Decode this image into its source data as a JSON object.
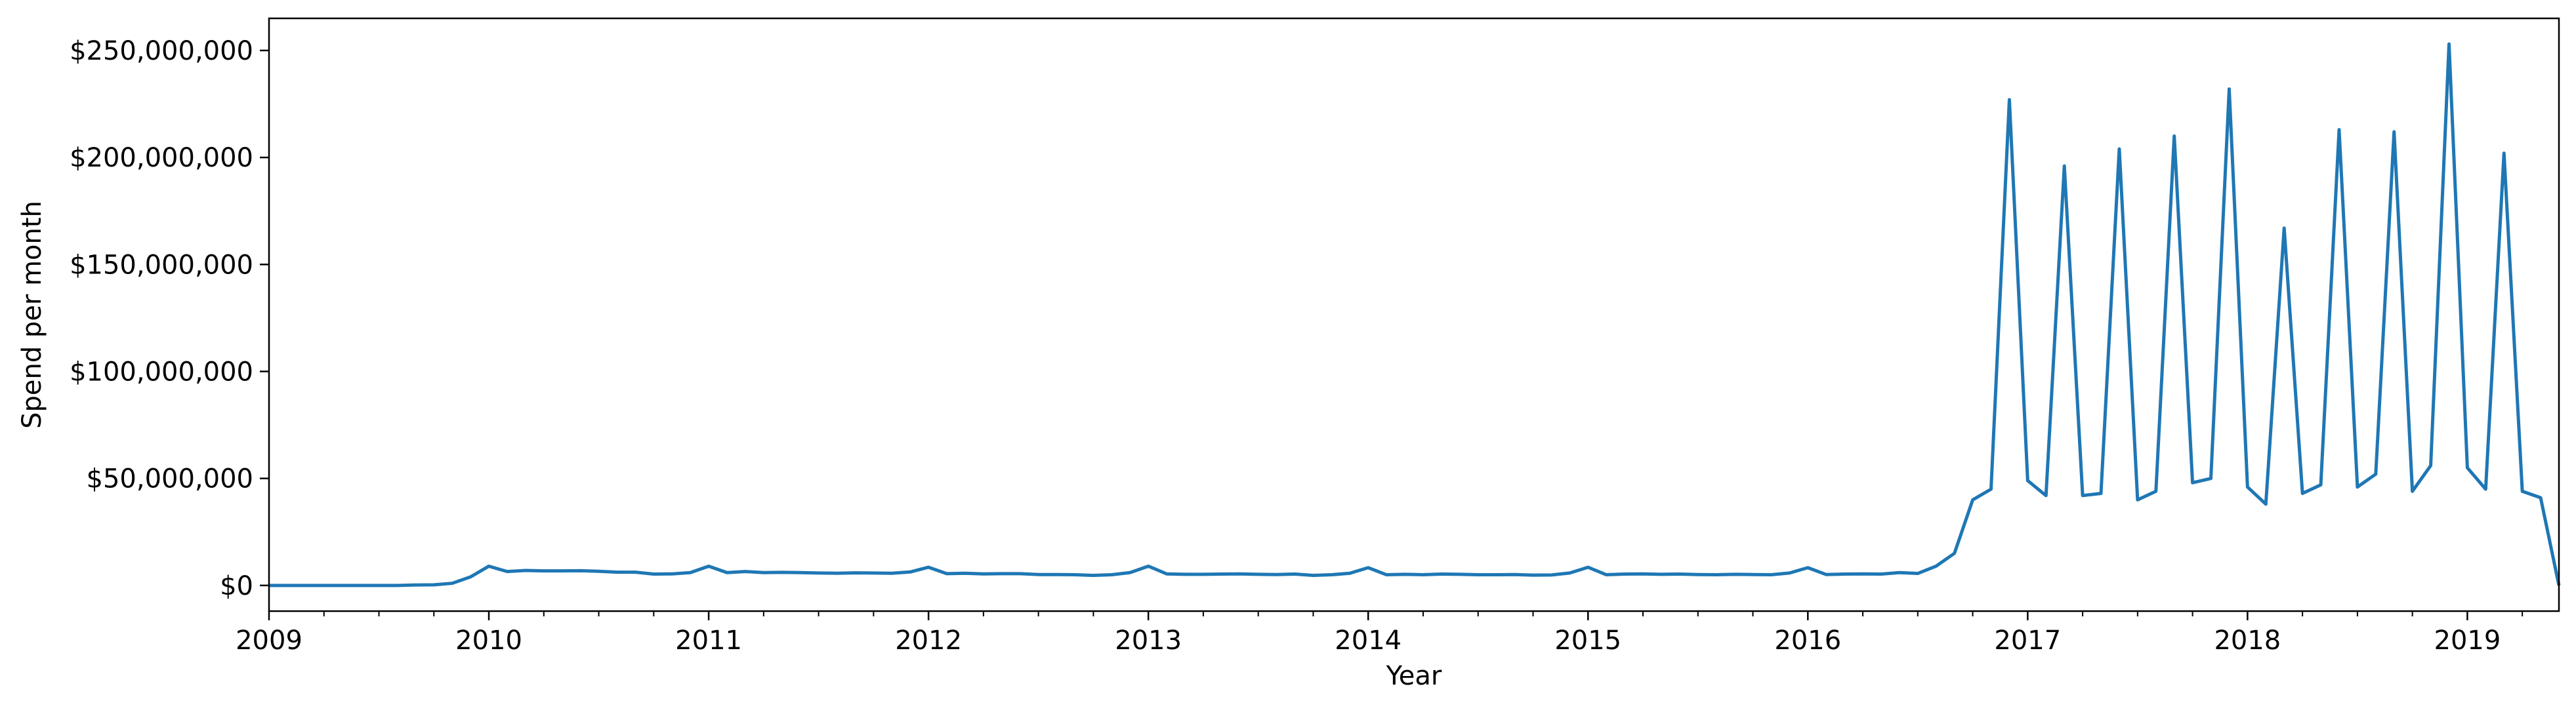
{
  "chart_data": {
    "type": "line",
    "title": "",
    "xlabel": "Year",
    "ylabel": "Spend per month",
    "x_ticks": [
      "2009",
      "2010",
      "2011",
      "2012",
      "2013",
      "2014",
      "2015",
      "2016",
      "2017",
      "2018",
      "2019"
    ],
    "y_ticks": [
      {
        "value": 0,
        "label": "$0"
      },
      {
        "value": 50000000,
        "label": "$50,000,000"
      },
      {
        "value": 100000000,
        "label": "$100,000,000"
      },
      {
        "value": 150000000,
        "label": "$150,000,000"
      },
      {
        "value": 200000000,
        "label": "$200,000,000"
      },
      {
        "value": 250000000,
        "label": "$250,000,000"
      }
    ],
    "xlim": [
      "2009-01",
      "2019-06"
    ],
    "ylim": [
      -12000000,
      265000000
    ],
    "grid": false,
    "legend": "none",
    "line_color": "#1f77b4",
    "series": [
      {
        "x": [
          "2009-01",
          "2009-02",
          "2009-03",
          "2009-04",
          "2009-05",
          "2009-06",
          "2009-07",
          "2009-08",
          "2009-09",
          "2009-10",
          "2009-11",
          "2009-12",
          "2010-01",
          "2010-02",
          "2010-03",
          "2010-04",
          "2010-05",
          "2010-06",
          "2010-07",
          "2010-08",
          "2010-09",
          "2010-10",
          "2010-11",
          "2010-12",
          "2011-01",
          "2011-02",
          "2011-03",
          "2011-04",
          "2011-05",
          "2011-06",
          "2011-07",
          "2011-08",
          "2011-09",
          "2011-10",
          "2011-11",
          "2011-12",
          "2012-01",
          "2012-02",
          "2012-03",
          "2012-04",
          "2012-05",
          "2012-06",
          "2012-07",
          "2012-08",
          "2012-09",
          "2012-10",
          "2012-11",
          "2012-12",
          "2013-01",
          "2013-02",
          "2013-03",
          "2013-04",
          "2013-05",
          "2013-06",
          "2013-07",
          "2013-08",
          "2013-09",
          "2013-10",
          "2013-11",
          "2013-12",
          "2014-01",
          "2014-02",
          "2014-03",
          "2014-04",
          "2014-05",
          "2014-06",
          "2014-07",
          "2014-08",
          "2014-09",
          "2014-10",
          "2014-11",
          "2014-12",
          "2015-01",
          "2015-02",
          "2015-03",
          "2015-04",
          "2015-05",
          "2015-06",
          "2015-07",
          "2015-08",
          "2015-09",
          "2015-10",
          "2015-11",
          "2015-12",
          "2016-01",
          "2016-02",
          "2016-03",
          "2016-04",
          "2016-05",
          "2016-06",
          "2016-07",
          "2016-08",
          "2016-09",
          "2016-10",
          "2016-11",
          "2016-12",
          "2017-01",
          "2017-02",
          "2017-03",
          "2017-04",
          "2017-05",
          "2017-06",
          "2017-07",
          "2017-08",
          "2017-09",
          "2017-10",
          "2017-11",
          "2017-12",
          "2018-01",
          "2018-02",
          "2018-03",
          "2018-04",
          "2018-05",
          "2018-06",
          "2018-07",
          "2018-08",
          "2018-09",
          "2018-10",
          "2018-11",
          "2018-12",
          "2019-01",
          "2019-02",
          "2019-03",
          "2019-04",
          "2019-05",
          "2019-06"
        ],
        "values": [
          0,
          0,
          0,
          0,
          0,
          0,
          0,
          0,
          200000,
          300000,
          1000000,
          4000000,
          9000000,
          6500000,
          7000000,
          6800000,
          6800000,
          6900000,
          6600000,
          6200000,
          6200000,
          5300000,
          5400000,
          6000000,
          9000000,
          6000000,
          6500000,
          6000000,
          6100000,
          6000000,
          5800000,
          5700000,
          5900000,
          5800000,
          5700000,
          6300000,
          8500000,
          5500000,
          5700000,
          5400000,
          5500000,
          5500000,
          5100000,
          5100000,
          5000000,
          4700000,
          5000000,
          6000000,
          9000000,
          5400000,
          5200000,
          5200000,
          5300000,
          5400000,
          5200000,
          5100000,
          5300000,
          4700000,
          5000000,
          5700000,
          8300000,
          5000000,
          5200000,
          5000000,
          5300000,
          5200000,
          5000000,
          5000000,
          5100000,
          4800000,
          4900000,
          5800000,
          8500000,
          5000000,
          5300000,
          5400000,
          5200000,
          5300000,
          5100000,
          5000000,
          5200000,
          5100000,
          5000000,
          5800000,
          8300000,
          5100000,
          5300000,
          5400000,
          5300000,
          6000000,
          5600000,
          9000000,
          15000000,
          40000000,
          45000000,
          227000000,
          49000000,
          42000000,
          196000000,
          42000000,
          43000000,
          204000000,
          40000000,
          44000000,
          210000000,
          48000000,
          50000000,
          232000000,
          46000000,
          38000000,
          167000000,
          43000000,
          47000000,
          213000000,
          46000000,
          52000000,
          212000000,
          44000000,
          56000000,
          253000000,
          55000000,
          45000000,
          202000000,
          44000000,
          41000000,
          0
        ]
      }
    ]
  }
}
